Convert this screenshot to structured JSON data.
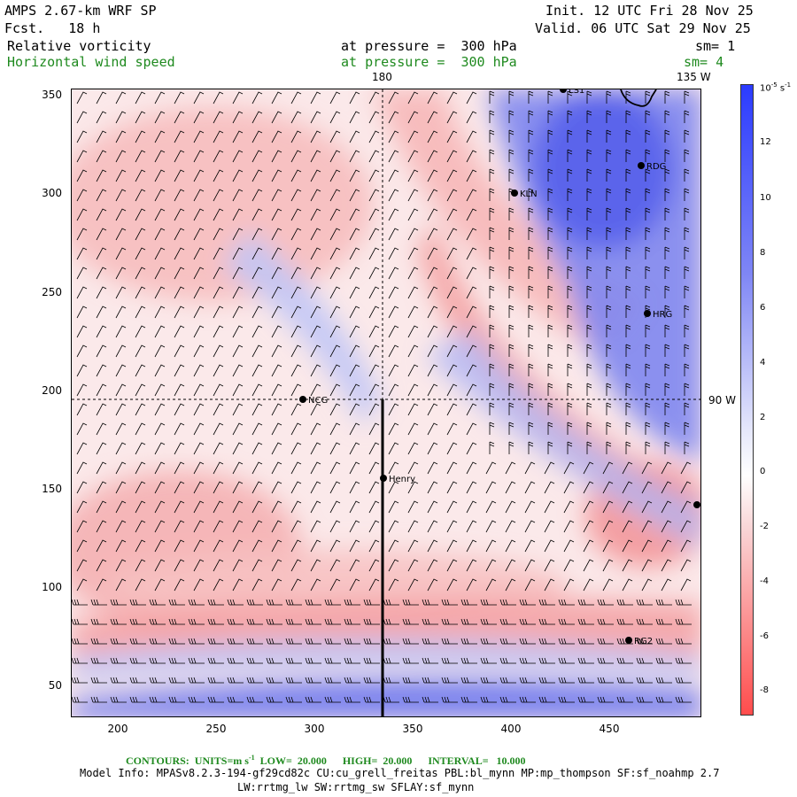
{
  "header": {
    "model": "AMPS 2.67-km WRF SP",
    "fcst": "Fcst.   18 h",
    "init": "Init. 12 UTC Fri 28 Nov 25",
    "valid": "Valid. 06 UTC Sat 29 Nov 25",
    "field1": "Relative vorticity",
    "field1_level": "at pressure =  300 hPa",
    "field1_sm": "sm= 1",
    "field2": "Horizontal wind speed",
    "field2_level": "at pressure =  300 hPa",
    "field2_sm": "sm= 4"
  },
  "map": {
    "meridian_180": "180",
    "meridian_135w": "135 W",
    "meridian_90w": "90 W",
    "y_ticks": [
      "350",
      "300",
      "250",
      "200",
      "150",
      "100",
      "50"
    ],
    "x_ticks": [
      "200",
      "250",
      "300",
      "350",
      "400",
      "450"
    ],
    "stations": [
      {
        "name": "LS1",
        "id": "ls1"
      },
      {
        "name": "RDG",
        "id": "rdg"
      },
      {
        "name": "KLN",
        "id": "kln"
      },
      {
        "name": "HRG",
        "id": "hrg"
      },
      {
        "name": "NCG",
        "id": "ncg"
      },
      {
        "name": "Henry",
        "id": "henry"
      },
      {
        "name": "RG2",
        "id": "rg2"
      },
      {
        "name": "",
        "id": "east-point"
      }
    ]
  },
  "colorbar": {
    "units": "10-5 s-1",
    "labels": [
      "12",
      "10",
      "8",
      "6",
      "4",
      "2",
      "0",
      "-2",
      "-4",
      "-6",
      "-8"
    ],
    "color_positive": "#2b3bff",
    "color_negative": "#ff4c4c"
  },
  "footer": {
    "contours": "CONTOURS:  UNITS=m s-1  LOW=  20.000      HIGH=  20.000      INTERVAL=   10.000",
    "model_info": "Model Info: MPASv8.2.3-194-gf29cd82c CU:cu_grell_freitas PBL:bl_mynn MP:mp_thompson SF:sf_noahmp 2.7",
    "model_info2": "LW:rrtmg_lw SW:rrtmg_sw SFLAY:sf_mynn"
  }
}
